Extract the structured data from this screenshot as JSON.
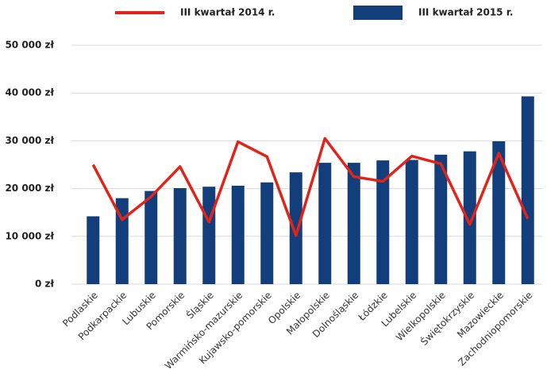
{
  "chart_data": {
    "type": "bar",
    "categories": [
      "Podlaskie",
      "Podkarpackie",
      "Lubuskie",
      "Pomorskie",
      "Śląskie",
      "Warmińsko-mazurskie",
      "Kujawsko-pomorskie",
      "Opolskie",
      "Małopolskie",
      "Dolnośląskie",
      "Łódzkie",
      "Lubelskie",
      "Wielkopolskie",
      "Świętokrzyskie",
      "Mazowieckie",
      "Zachodniopomorskie"
    ],
    "series": [
      {
        "name": "III kwartał 2014 r.",
        "type": "line",
        "color": "#e2231a",
        "values": [
          25000,
          13500,
          18300,
          24600,
          13000,
          29800,
          26700,
          10200,
          30500,
          22500,
          21500,
          26800,
          25200,
          12500,
          27400,
          13700
        ]
      },
      {
        "name": "III kwartał 2015 r.",
        "type": "bar",
        "color": "#123f7c",
        "values": [
          14200,
          18000,
          19500,
          20100,
          20400,
          20600,
          21300,
          23400,
          25400,
          25400,
          25900,
          26000,
          27100,
          27800,
          29900,
          39300
        ]
      }
    ],
    "ylim": [
      0,
      50000
    ],
    "yticks": [
      {
        "value": 0,
        "label": "0 zł"
      },
      {
        "value": 10000,
        "label": "10 000 zł"
      },
      {
        "value": 20000,
        "label": "20 000 zł"
      },
      {
        "value": 30000,
        "label": "30 000 zł"
      },
      {
        "value": 40000,
        "label": "40 000 zł"
      },
      {
        "value": 50000,
        "label": "50 000 zł"
      }
    ],
    "grid": true
  }
}
